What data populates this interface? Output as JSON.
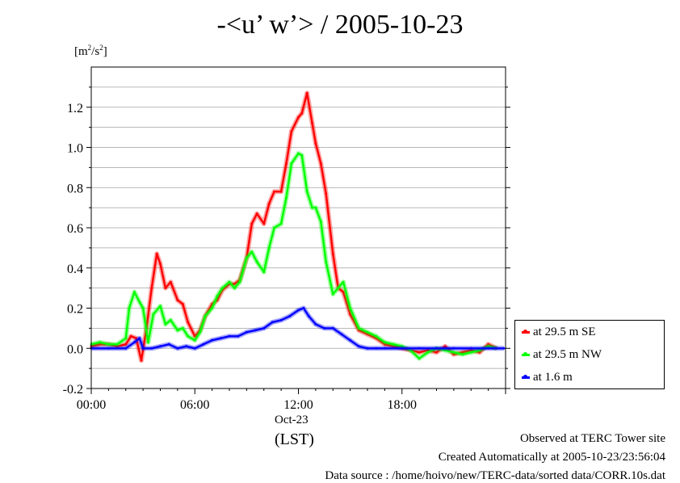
{
  "title": "-<u’ w’> / 2005-10-23",
  "units": {
    "base": "[m",
    "sup1": "2",
    "mid": "/s",
    "sup2": "2",
    "end": "]"
  },
  "date_label": "Oct-23",
  "lst_label": "(LST)",
  "footer": {
    "line1": "Observed at TERC Tower site",
    "line2": "Created Automatically at 2005-10-23/23:56:04",
    "line3": "Data source : /home/hoivo/new/TERC-data/sorted  data/CORR.10s.dat"
  },
  "chart_data": {
    "type": "line",
    "xlabel": "(LST)",
    "ylabel": "[m2/s2]",
    "xlim": [
      0,
      24
    ],
    "ylim": [
      -0.2,
      1.4
    ],
    "x_ticks": [
      0,
      6,
      12,
      18
    ],
    "x_tick_labels": [
      "00:00",
      "06:00",
      "12:00",
      "18:00"
    ],
    "y_ticks": [
      -0.2,
      0.0,
      0.2,
      0.4,
      0.6,
      0.8,
      1.0,
      1.2
    ],
    "y_tick_labels": [
      "-0.2",
      "0.0",
      "0.2",
      "0.4",
      "0.6",
      "0.8",
      "1.0",
      "1.2"
    ],
    "grid": true,
    "legend_position": "bottom-right outside",
    "series": [
      {
        "name": "at 29.5 m SE",
        "color": "#ff0000",
        "x": [
          0,
          0.5,
          1,
          1.5,
          2,
          2.3,
          2.6,
          2.9,
          3.2,
          3.5,
          3.8,
          4,
          4.3,
          4.6,
          5,
          5.3,
          5.6,
          6,
          6.3,
          6.6,
          7,
          7.3,
          7.6,
          8,
          8.3,
          8.6,
          9,
          9.3,
          9.6,
          10,
          10.3,
          10.6,
          11,
          11.3,
          11.6,
          12,
          12.2,
          12.5,
          12.8,
          13,
          13.3,
          13.6,
          14,
          14.3,
          14.6,
          15,
          15.5,
          16,
          16.5,
          17,
          17.5,
          18,
          18.5,
          19,
          19.5,
          20,
          20.5,
          21,
          21.5,
          22,
          22.5,
          23,
          23.5
        ],
        "y": [
          0.01,
          0.02,
          0.02,
          0.01,
          0.02,
          0.06,
          0.05,
          -0.06,
          0.1,
          0.3,
          0.47,
          0.42,
          0.3,
          0.33,
          0.24,
          0.22,
          0.13,
          0.06,
          0.09,
          0.16,
          0.22,
          0.24,
          0.29,
          0.32,
          0.32,
          0.34,
          0.45,
          0.62,
          0.67,
          0.62,
          0.72,
          0.78,
          0.78,
          0.92,
          1.08,
          1.15,
          1.17,
          1.27,
          1.12,
          1.02,
          0.92,
          0.77,
          0.47,
          0.3,
          0.28,
          0.17,
          0.09,
          0.07,
          0.05,
          0.02,
          0.01,
          0.0,
          -0.01,
          -0.02,
          -0.01,
          -0.02,
          0.01,
          -0.03,
          -0.02,
          -0.01,
          -0.02,
          0.02,
          0.0
        ]
      },
      {
        "name": "at 29.5 m NW",
        "color": "#00ff00",
        "x": [
          0,
          0.5,
          1,
          1.5,
          2,
          2.2,
          2.5,
          2.8,
          3,
          3.3,
          3.6,
          4,
          4.3,
          4.6,
          5,
          5.3,
          5.6,
          6,
          6.3,
          6.6,
          7,
          7.3,
          7.6,
          8,
          8.3,
          8.6,
          9,
          9.3,
          9.6,
          10,
          10.3,
          10.6,
          11,
          11.3,
          11.6,
          12,
          12.2,
          12.5,
          12.8,
          13,
          13.3,
          13.6,
          14,
          14.3,
          14.6,
          15,
          15.5,
          16,
          16.5,
          17,
          17.5,
          18,
          18.5,
          19,
          19.5,
          20,
          20.5,
          21,
          21.5,
          22,
          22.5,
          23,
          23.5
        ],
        "y": [
          0.02,
          0.03,
          0.02,
          0.02,
          0.05,
          0.2,
          0.28,
          0.23,
          0.2,
          0.03,
          0.17,
          0.21,
          0.12,
          0.14,
          0.09,
          0.1,
          0.06,
          0.04,
          0.08,
          0.16,
          0.2,
          0.26,
          0.3,
          0.33,
          0.3,
          0.33,
          0.45,
          0.48,
          0.43,
          0.38,
          0.5,
          0.6,
          0.62,
          0.75,
          0.92,
          0.97,
          0.96,
          0.78,
          0.7,
          0.7,
          0.63,
          0.43,
          0.27,
          0.3,
          0.33,
          0.2,
          0.1,
          0.08,
          0.06,
          0.03,
          0.02,
          0.01,
          -0.01,
          -0.05,
          -0.02,
          0.0,
          -0.01,
          -0.02,
          -0.03,
          -0.02,
          -0.01,
          0.01,
          0.0
        ]
      },
      {
        "name": "at 1.6 m",
        "color": "#0000ff",
        "x": [
          0,
          1,
          2,
          2.5,
          2.8,
          3,
          3.5,
          4,
          4.5,
          5,
          5.5,
          6,
          6.5,
          7,
          7.5,
          8,
          8.5,
          9,
          9.5,
          10,
          10.5,
          11,
          11.5,
          12,
          12.3,
          12.6,
          13,
          13.5,
          14,
          14.5,
          15,
          15.5,
          16,
          16.5,
          17,
          18,
          19,
          20,
          21,
          22,
          23,
          23.9
        ],
        "y": [
          0.0,
          0.0,
          0.0,
          0.03,
          0.05,
          0.0,
          0.0,
          0.01,
          0.02,
          0.0,
          0.01,
          0.0,
          0.02,
          0.04,
          0.05,
          0.06,
          0.06,
          0.08,
          0.09,
          0.1,
          0.13,
          0.14,
          0.16,
          0.19,
          0.2,
          0.16,
          0.12,
          0.1,
          0.1,
          0.07,
          0.04,
          0.01,
          0.0,
          0.0,
          0.0,
          0.0,
          0.0,
          0.0,
          0.0,
          0.0,
          0.0,
          0.0
        ]
      }
    ]
  }
}
